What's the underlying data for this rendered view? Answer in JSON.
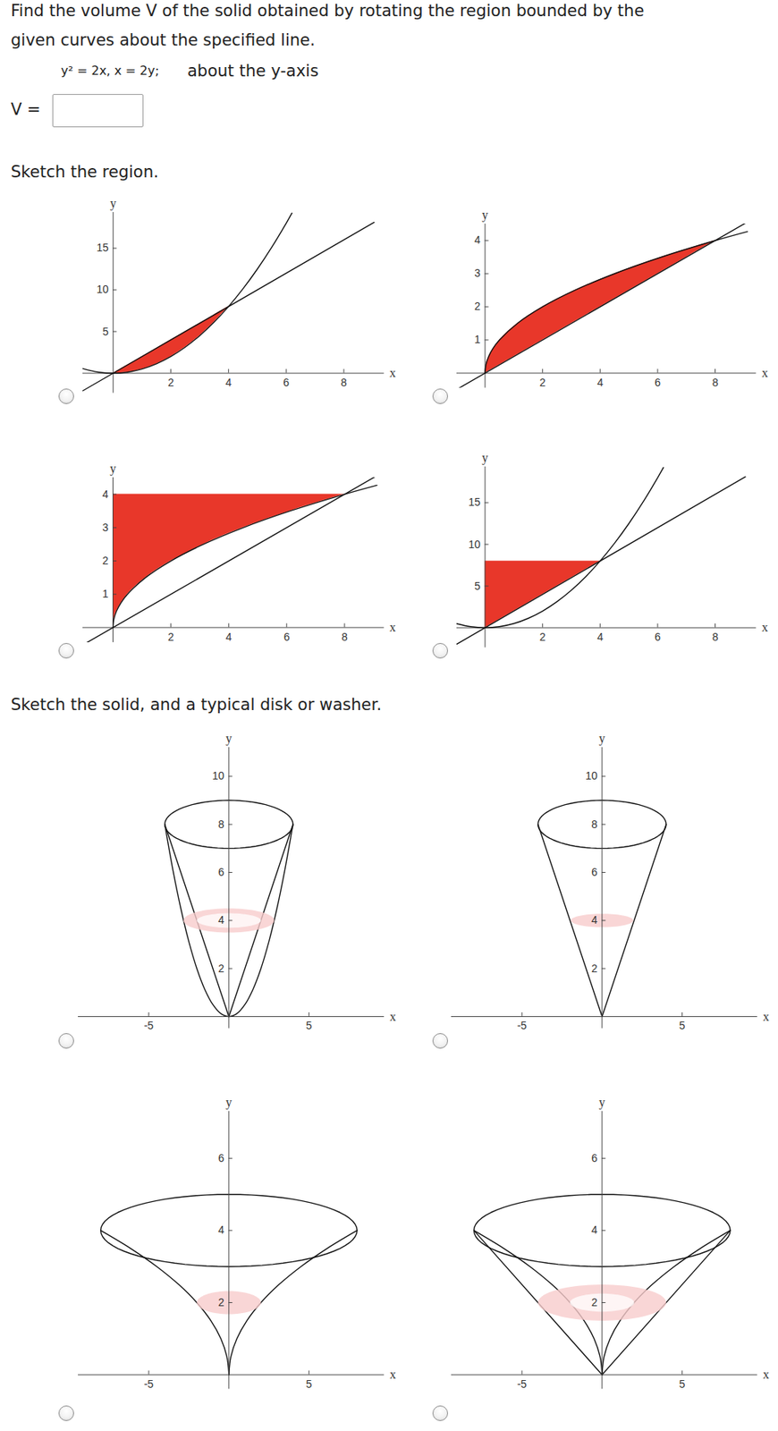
{
  "question": {
    "lines": [
      "Find the volume V of the solid obtained by rotating the region bounded by the",
      "given curves about the specified line."
    ],
    "equation": "y² = 2x, x = 2y;",
    "about": "about the y-axis",
    "answer_label": "V ="
  },
  "headings": [
    "Sketch the region.",
    "Sketch the solid, and a typical disk or washer."
  ],
  "chart_data": [
    {
      "type": "area",
      "x_label": "x",
      "y_label": "y",
      "xlim": [
        -1.05,
        9.4
      ],
      "ylim": [
        -2.4,
        19.3
      ],
      "xticks": [
        2,
        4,
        6,
        8
      ],
      "yticks": [
        5,
        10,
        15
      ],
      "regions": [
        {
          "x": [
            0,
            0.5,
            1,
            1.5,
            2,
            2.5,
            3,
            3.5,
            4
          ],
          "lower": [
            0,
            0.125,
            0.5,
            1.125,
            2,
            3.125,
            4.5,
            6.125,
            8
          ],
          "upper": [
            0,
            1,
            2,
            3,
            4,
            5,
            6,
            7,
            8
          ],
          "color": "#e8372a"
        }
      ],
      "curves": [
        {
          "x": [
            -1.05,
            -0.5,
            0,
            0.5,
            1,
            1.5,
            2,
            2.5,
            3,
            3.5,
            4,
            4.5,
            5,
            5.5,
            6,
            6.2
          ],
          "y": [
            0.55,
            0.125,
            0,
            0.125,
            0.5,
            1.125,
            2,
            3.125,
            4.5,
            6.125,
            8,
            10.125,
            12.5,
            15.125,
            18,
            19.22
          ]
        },
        {
          "x": [
            -1.05,
            9.05
          ],
          "y": [
            -2.1,
            18.1
          ]
        }
      ]
    },
    {
      "type": "area",
      "x_label": "x",
      "y_label": "y",
      "xlim": [
        -0.98,
        9.43
      ],
      "ylim": [
        -0.45,
        4.5
      ],
      "xticks": [
        2,
        4,
        6,
        8
      ],
      "yticks": [
        1,
        2,
        3,
        4
      ],
      "regions": [
        {
          "y": [
            0,
            0.25,
            0.5,
            1,
            1.5,
            2,
            2.5,
            3,
            3.5,
            4
          ],
          "left": [
            0,
            0.03,
            0.125,
            0.5,
            1.125,
            2,
            3.125,
            4.5,
            6.125,
            8
          ],
          "right": [
            0,
            0.5,
            1,
            2,
            3,
            4,
            5,
            6,
            7,
            8
          ],
          "color": "#e8372a"
        }
      ],
      "curves": [
        {
          "x": [
            0,
            0.03,
            0.125,
            0.28,
            0.5,
            1.125,
            2,
            3.125,
            4.5,
            6.125,
            8,
            9.12
          ],
          "y": [
            0,
            0.25,
            0.5,
            0.75,
            1,
            1.5,
            2,
            2.5,
            3,
            3.5,
            4,
            4.27
          ]
        },
        {
          "x": [
            -0.98,
            9.12
          ],
          "y": [
            -0.49,
            4.56
          ]
        }
      ]
    },
    {
      "type": "area",
      "x_label": "x",
      "y_label": "y",
      "xlim": [
        -1.04,
        9.37
      ],
      "ylim": [
        -0.45,
        4.5
      ],
      "xticks": [
        2,
        4,
        6,
        8
      ],
      "yticks": [
        1,
        2,
        3,
        4
      ],
      "regions": [
        {
          "y": [
            0,
            0.25,
            0.5,
            1,
            1.5,
            2,
            2.5,
            3,
            3.5,
            4
          ],
          "left": [
            0,
            0,
            0,
            0,
            0,
            0,
            0,
            0,
            0,
            0
          ],
          "right": [
            0,
            0.03,
            0.125,
            0.5,
            1.125,
            2,
            3.125,
            4.5,
            6.125,
            8
          ],
          "color": "#e8372a"
        }
      ],
      "curves": [
        {
          "x": [
            0,
            0.03,
            0.125,
            0.28,
            0.5,
            1.125,
            2,
            3.125,
            4.5,
            6.125,
            8,
            9.12
          ],
          "y": [
            0,
            0.25,
            0.5,
            0.75,
            1,
            1.5,
            2,
            2.5,
            3,
            3.5,
            4,
            4.27
          ]
        },
        {
          "x": [
            -1.04,
            9.12
          ],
          "y": [
            -0.52,
            4.56
          ]
        }
      ]
    },
    {
      "type": "area",
      "x_label": "x",
      "y_label": "y",
      "xlim": [
        -0.98,
        9.43
      ],
      "ylim": [
        -2.4,
        19.3
      ],
      "xticks": [
        2,
        4,
        6,
        8
      ],
      "yticks": [
        5,
        10,
        15
      ],
      "regions": [
        {
          "x": [
            0,
            4
          ],
          "lower": [
            0,
            8
          ],
          "upper": [
            8,
            8
          ],
          "color": "#e8372a"
        }
      ],
      "curves": [
        {
          "x": [
            -0.98,
            -0.5,
            0,
            0.5,
            1,
            1.5,
            2,
            2.5,
            3,
            3.5,
            4,
            4.5,
            5,
            5.5,
            6,
            6.2
          ],
          "y": [
            0.48,
            0.125,
            0,
            0.125,
            0.5,
            1.125,
            2,
            3.125,
            4.5,
            6.125,
            8,
            10.125,
            12.5,
            15.125,
            18,
            19.22
          ]
        },
        {
          "x": [
            -0.98,
            9.05
          ],
          "y": [
            -1.96,
            18.1
          ]
        }
      ]
    },
    {
      "type": "line",
      "x_label": "x",
      "y_label": "y",
      "xlim": [
        -9.4,
        9.7
      ],
      "ylim": [
        -0.5,
        11.2
      ],
      "xticks": [
        -5,
        5
      ],
      "yticks": [
        2,
        4,
        6,
        8,
        10
      ],
      "curves": [
        {
          "x": [
            -4,
            -3.5,
            -3,
            -2.5,
            -2,
            -1.5,
            -1,
            -0.5,
            0,
            0.5,
            1,
            1.5,
            2,
            2.5,
            3,
            3.5,
            4
          ],
          "y": [
            8,
            6.125,
            4.5,
            3.125,
            2,
            1.125,
            0.5,
            0.125,
            0,
            0.125,
            0.5,
            1.125,
            2,
            3.125,
            4.5,
            6.125,
            8
          ]
        },
        {
          "x": [
            -4,
            0
          ],
          "y": [
            8,
            0
          ]
        },
        {
          "x": [
            0,
            4
          ],
          "y": [
            0,
            8
          ]
        }
      ],
      "ellipses": [
        {
          "cx": 0,
          "cy": 8,
          "rx": 4,
          "ry": 1
        }
      ],
      "washers": [
        {
          "cx": 0,
          "cy": 4,
          "outer_rx": 2.83,
          "outer_ry": 0.5,
          "inner_rx": 2,
          "inner_ry": 0.3,
          "color": "#f7cccc"
        }
      ]
    },
    {
      "type": "line",
      "x_label": "x",
      "y_label": "y",
      "xlim": [
        -9.4,
        9.7
      ],
      "ylim": [
        -0.5,
        11.2
      ],
      "xticks": [
        -5,
        5
      ],
      "yticks": [
        2,
        4,
        6,
        8,
        10
      ],
      "curves": [
        {
          "x": [
            -4,
            0
          ],
          "y": [
            8,
            0
          ]
        },
        {
          "x": [
            0,
            4
          ],
          "y": [
            0,
            8
          ]
        }
      ],
      "ellipses": [
        {
          "cx": 0,
          "cy": 8,
          "rx": 4,
          "ry": 1
        }
      ],
      "disks": [
        {
          "cx": 0,
          "cy": 4,
          "rx": 1.95,
          "ry": 0.28,
          "color": "#f7cccc"
        }
      ]
    },
    {
      "type": "line",
      "x_label": "x",
      "y_label": "y",
      "xlim": [
        -9.4,
        9.7
      ],
      "ylim": [
        -0.4,
        7.3
      ],
      "xticks": [
        -5,
        5
      ],
      "yticks": [
        2,
        4,
        6
      ],
      "curves": [
        {
          "x": [
            0,
            0.125,
            0.5,
            1.125,
            2,
            3.125,
            4.5,
            6.125,
            8
          ],
          "y": [
            0,
            0.5,
            1,
            1.5,
            2,
            2.5,
            3,
            3.5,
            4
          ]
        },
        {
          "x": [
            0,
            -0.125,
            -0.5,
            -1.125,
            -2,
            -3.125,
            -4.5,
            -6.125,
            -8
          ],
          "y": [
            0,
            0.5,
            1,
            1.5,
            2,
            2.5,
            3,
            3.5,
            4
          ]
        }
      ],
      "ellipses": [
        {
          "cx": 0,
          "cy": 4,
          "rx": 8,
          "ry": 1
        }
      ],
      "disks": [
        {
          "cx": 0,
          "cy": 2,
          "rx": 2,
          "ry": 0.32,
          "color": "#f7cccc"
        }
      ]
    },
    {
      "type": "line",
      "x_label": "x",
      "y_label": "y",
      "xlim": [
        -9.4,
        9.7
      ],
      "ylim": [
        -0.4,
        7.3
      ],
      "xticks": [
        -5,
        5
      ],
      "yticks": [
        2,
        4,
        6
      ],
      "curves": [
        {
          "x": [
            0,
            0.125,
            0.5,
            1.125,
            2,
            3.125,
            4.5,
            6.125,
            8
          ],
          "y": [
            0,
            0.5,
            1,
            1.5,
            2,
            2.5,
            3,
            3.5,
            4
          ]
        },
        {
          "x": [
            0,
            -0.125,
            -0.5,
            -1.125,
            -2,
            -3.125,
            -4.5,
            -6.125,
            -8
          ],
          "y": [
            0,
            0.5,
            1,
            1.5,
            2,
            2.5,
            3,
            3.5,
            4
          ]
        },
        {
          "x": [
            -8,
            0
          ],
          "y": [
            4,
            0
          ]
        },
        {
          "x": [
            0,
            8
          ],
          "y": [
            0,
            4
          ]
        }
      ],
      "ellipses": [
        {
          "cx": 0,
          "cy": 4,
          "rx": 8,
          "ry": 1
        }
      ],
      "washers": [
        {
          "cx": 0,
          "cy": 2,
          "outer_rx": 4,
          "outer_ry": 0.5,
          "inner_rx": 2,
          "inner_ry": 0.25,
          "color": "#f7cccc"
        }
      ]
    }
  ]
}
